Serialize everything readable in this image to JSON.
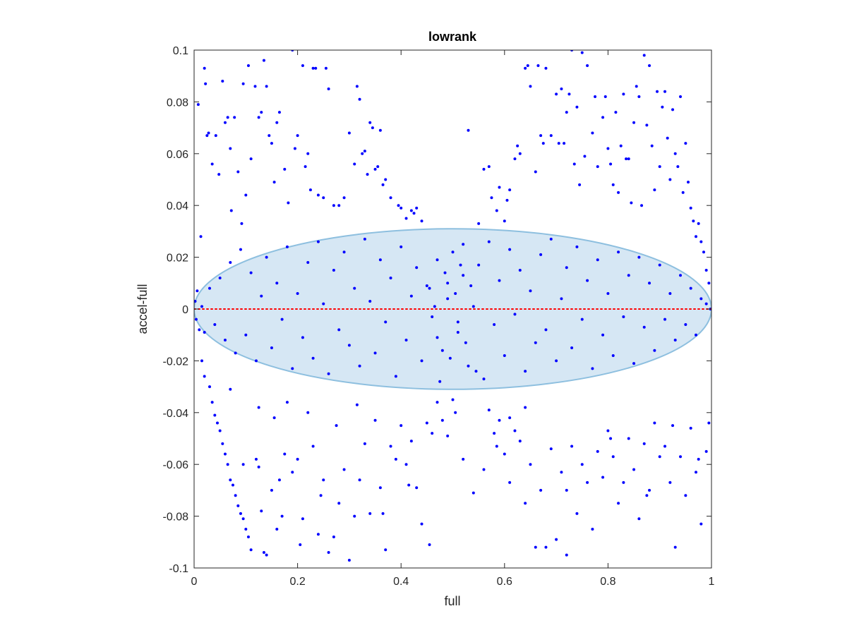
{
  "chart_data": {
    "type": "scatter",
    "title": "lowrank",
    "xlabel": "full",
    "ylabel": "accel-full",
    "xlim": [
      0,
      1
    ],
    "ylim": [
      -0.1,
      0.1
    ],
    "xticks": [
      0,
      0.2,
      0.4,
      0.6,
      0.8,
      1
    ],
    "xtick_labels": [
      "0",
      "0.2",
      "0.4",
      "0.6",
      "0.8",
      "1"
    ],
    "yticks": [
      -0.1,
      -0.08,
      -0.06,
      -0.04,
      -0.02,
      0,
      0.02,
      0.04,
      0.06,
      0.08,
      0.1
    ],
    "ytick_labels": [
      "-0.1",
      "-0.08",
      "-0.06",
      "-0.04",
      "-0.02",
      "0",
      "0.02",
      "0.04",
      "0.06",
      "0.08",
      "0.1"
    ],
    "grid": false,
    "legend": "none",
    "colors": {
      "points": "#0000ff",
      "ellipse_fill": "#d6e7f4",
      "ellipse_edge": "#8dbfdf",
      "zero_line": "#ff0000",
      "axes": "#262626"
    },
    "reference_line": {
      "y": 0,
      "x_range": [
        0,
        1
      ],
      "style": "dotted"
    },
    "ellipse": {
      "center": [
        0.5,
        0
      ],
      "semi_axis_x": 0.5,
      "semi_axis_y": 0.031
    },
    "points": [
      [
        0.008,
        0.079
      ],
      [
        0.013,
        0.028
      ],
      [
        0.02,
        0.093
      ],
      [
        0.022,
        0.087
      ],
      [
        0.025,
        0.067
      ],
      [
        0.028,
        0.068
      ],
      [
        0.035,
        0.056
      ],
      [
        0.042,
        0.067
      ],
      [
        0.048,
        0.052
      ],
      [
        0.055,
        0.088
      ],
      [
        0.06,
        0.072
      ],
      [
        0.065,
        0.074
      ],
      [
        0.07,
        0.062
      ],
      [
        0.072,
        0.038
      ],
      [
        0.078,
        0.074
      ],
      [
        0.085,
        0.053
      ],
      [
        0.092,
        0.033
      ],
      [
        0.095,
        0.087
      ],
      [
        0.1,
        0.044
      ],
      [
        0.105,
        0.094
      ],
      [
        0.11,
        0.058
      ],
      [
        0.118,
        0.086
      ],
      [
        0.125,
        0.074
      ],
      [
        0.13,
        0.076
      ],
      [
        0.135,
        0.096
      ],
      [
        0.14,
        0.086
      ],
      [
        0.145,
        0.067
      ],
      [
        0.15,
        0.064
      ],
      [
        0.155,
        0.049
      ],
      [
        0.16,
        0.072
      ],
      [
        0.165,
        0.076
      ],
      [
        0.175,
        0.054
      ],
      [
        0.182,
        0.041
      ],
      [
        0.19,
        0.1
      ],
      [
        0.195,
        0.062
      ],
      [
        0.2,
        0.067
      ],
      [
        0.21,
        0.094
      ],
      [
        0.215,
        0.055
      ],
      [
        0.22,
        0.06
      ],
      [
        0.225,
        0.046
      ],
      [
        0.23,
        0.093
      ],
      [
        0.235,
        0.093
      ],
      [
        0.24,
        0.044
      ],
      [
        0.25,
        0.043
      ],
      [
        0.255,
        0.093
      ],
      [
        0.26,
        0.085
      ],
      [
        0.27,
        0.04
      ],
      [
        0.28,
        0.04
      ],
      [
        0.29,
        0.043
      ],
      [
        0.3,
        0.068
      ],
      [
        0.31,
        0.056
      ],
      [
        0.315,
        0.086
      ],
      [
        0.32,
        0.081
      ],
      [
        0.325,
        0.06
      ],
      [
        0.33,
        0.061
      ],
      [
        0.335,
        0.052
      ],
      [
        0.34,
        0.072
      ],
      [
        0.345,
        0.07
      ],
      [
        0.35,
        0.054
      ],
      [
        0.355,
        0.055
      ],
      [
        0.36,
        0.069
      ],
      [
        0.365,
        0.048
      ],
      [
        0.37,
        0.05
      ],
      [
        0.38,
        0.043
      ],
      [
        0.395,
        0.04
      ],
      [
        0.4,
        0.039
      ],
      [
        0.41,
        0.035
      ],
      [
        0.42,
        0.038
      ],
      [
        0.425,
        0.037
      ],
      [
        0.43,
        0.039
      ],
      [
        0.44,
        0.034
      ],
      [
        0.53,
        0.069
      ],
      [
        0.55,
        0.033
      ],
      [
        0.56,
        0.054
      ],
      [
        0.57,
        0.055
      ],
      [
        0.575,
        0.043
      ],
      [
        0.585,
        0.038
      ],
      [
        0.59,
        0.047
      ],
      [
        0.6,
        0.034
      ],
      [
        0.605,
        0.042
      ],
      [
        0.61,
        0.046
      ],
      [
        0.62,
        0.058
      ],
      [
        0.625,
        0.063
      ],
      [
        0.63,
        0.06
      ],
      [
        0.64,
        0.093
      ],
      [
        0.645,
        0.094
      ],
      [
        0.65,
        0.086
      ],
      [
        0.66,
        0.053
      ],
      [
        0.665,
        0.094
      ],
      [
        0.67,
        0.067
      ],
      [
        0.675,
        0.064
      ],
      [
        0.68,
        0.093
      ],
      [
        0.69,
        0.067
      ],
      [
        0.7,
        0.083
      ],
      [
        0.705,
        0.064
      ],
      [
        0.71,
        0.085
      ],
      [
        0.715,
        0.064
      ],
      [
        0.72,
        0.076
      ],
      [
        0.725,
        0.083
      ],
      [
        0.73,
        0.1
      ],
      [
        0.735,
        0.056
      ],
      [
        0.74,
        0.078
      ],
      [
        0.745,
        0.048
      ],
      [
        0.75,
        0.099
      ],
      [
        0.755,
        0.059
      ],
      [
        0.76,
        0.094
      ],
      [
        0.77,
        0.068
      ],
      [
        0.775,
        0.082
      ],
      [
        0.78,
        0.055
      ],
      [
        0.79,
        0.074
      ],
      [
        0.795,
        0.082
      ],
      [
        0.8,
        0.062
      ],
      [
        0.805,
        0.056
      ],
      [
        0.81,
        0.048
      ],
      [
        0.815,
        0.076
      ],
      [
        0.82,
        0.045
      ],
      [
        0.825,
        0.063
      ],
      [
        0.83,
        0.083
      ],
      [
        0.835,
        0.058
      ],
      [
        0.84,
        0.058
      ],
      [
        0.845,
        0.041
      ],
      [
        0.85,
        0.072
      ],
      [
        0.855,
        0.086
      ],
      [
        0.86,
        0.082
      ],
      [
        0.865,
        0.04
      ],
      [
        0.87,
        0.098
      ],
      [
        0.875,
        0.071
      ],
      [
        0.88,
        0.094
      ],
      [
        0.885,
        0.063
      ],
      [
        0.89,
        0.046
      ],
      [
        0.895,
        0.084
      ],
      [
        0.9,
        0.055
      ],
      [
        0.905,
        0.078
      ],
      [
        0.91,
        0.084
      ],
      [
        0.915,
        0.066
      ],
      [
        0.92,
        0.05
      ],
      [
        0.925,
        0.077
      ],
      [
        0.93,
        0.06
      ],
      [
        0.935,
        0.055
      ],
      [
        0.94,
        0.082
      ],
      [
        0.945,
        0.045
      ],
      [
        0.95,
        0.064
      ],
      [
        0.955,
        0.049
      ],
      [
        0.96,
        0.039
      ],
      [
        0.965,
        0.034
      ],
      [
        0.97,
        0.028
      ],
      [
        0.975,
        0.033
      ],
      [
        0.98,
        0.026
      ],
      [
        0.985,
        0.022
      ],
      [
        0.99,
        0.015
      ],
      [
        0.995,
        0.01
      ],
      [
        0.002,
        0.003
      ],
      [
        0.004,
        -0.004
      ],
      [
        0.006,
        0.007
      ],
      [
        0.01,
        -0.008
      ],
      [
        0.015,
        0.001
      ],
      [
        0.02,
        -0.009
      ],
      [
        0.03,
        0.008
      ],
      [
        0.04,
        -0.006
      ],
      [
        0.05,
        0.012
      ],
      [
        0.06,
        -0.012
      ],
      [
        0.07,
        0.018
      ],
      [
        0.08,
        -0.017
      ],
      [
        0.09,
        0.023
      ],
      [
        0.1,
        -0.01
      ],
      [
        0.11,
        0.014
      ],
      [
        0.12,
        -0.02
      ],
      [
        0.13,
        0.005
      ],
      [
        0.14,
        0.02
      ],
      [
        0.15,
        -0.015
      ],
      [
        0.16,
        0.01
      ],
      [
        0.17,
        -0.004
      ],
      [
        0.18,
        0.024
      ],
      [
        0.19,
        -0.023
      ],
      [
        0.2,
        0.006
      ],
      [
        0.21,
        -0.011
      ],
      [
        0.22,
        0.018
      ],
      [
        0.23,
        -0.019
      ],
      [
        0.24,
        0.026
      ],
      [
        0.25,
        0.002
      ],
      [
        0.26,
        -0.025
      ],
      [
        0.27,
        0.015
      ],
      [
        0.28,
        -0.008
      ],
      [
        0.29,
        0.022
      ],
      [
        0.3,
        -0.014
      ],
      [
        0.31,
        0.008
      ],
      [
        0.32,
        -0.022
      ],
      [
        0.33,
        0.027
      ],
      [
        0.34,
        0.003
      ],
      [
        0.35,
        -0.017
      ],
      [
        0.36,
        0.019
      ],
      [
        0.37,
        -0.005
      ],
      [
        0.38,
        0.012
      ],
      [
        0.39,
        -0.026
      ],
      [
        0.4,
        0.024
      ],
      [
        0.41,
        -0.012
      ],
      [
        0.42,
        0.005
      ],
      [
        0.43,
        0.016
      ],
      [
        0.44,
        -0.02
      ],
      [
        0.45,
        0.009
      ],
      [
        0.46,
        -0.003
      ],
      [
        0.47,
        0.019
      ],
      [
        0.48,
        -0.016
      ],
      [
        0.49,
        0.004
      ],
      [
        0.5,
        0.022
      ],
      [
        0.51,
        -0.009
      ],
      [
        0.52,
        0.013
      ],
      [
        0.53,
        -0.022
      ],
      [
        0.54,
        0.001
      ],
      [
        0.55,
        0.017
      ],
      [
        0.56,
        -0.027
      ],
      [
        0.57,
        0.026
      ],
      [
        0.58,
        -0.006
      ],
      [
        0.59,
        0.011
      ],
      [
        0.6,
        -0.018
      ],
      [
        0.61,
        0.023
      ],
      [
        0.62,
        -0.002
      ],
      [
        0.63,
        0.015
      ],
      [
        0.64,
        -0.024
      ],
      [
        0.65,
        0.007
      ],
      [
        0.66,
        -0.013
      ],
      [
        0.67,
        0.021
      ],
      [
        0.68,
        -0.008
      ],
      [
        0.69,
        0.027
      ],
      [
        0.7,
        -0.02
      ],
      [
        0.71,
        0.004
      ],
      [
        0.72,
        0.016
      ],
      [
        0.73,
        -0.015
      ],
      [
        0.74,
        0.024
      ],
      [
        0.75,
        -0.004
      ],
      [
        0.76,
        0.011
      ],
      [
        0.77,
        -0.023
      ],
      [
        0.78,
        0.019
      ],
      [
        0.79,
        -0.01
      ],
      [
        0.8,
        0.006
      ],
      [
        0.81,
        -0.018
      ],
      [
        0.82,
        0.022
      ],
      [
        0.83,
        -0.003
      ],
      [
        0.84,
        0.013
      ],
      [
        0.85,
        -0.021
      ],
      [
        0.86,
        0.02
      ],
      [
        0.87,
        -0.007
      ],
      [
        0.88,
        0.01
      ],
      [
        0.89,
        -0.016
      ],
      [
        0.9,
        0.017
      ],
      [
        0.91,
        -0.004
      ],
      [
        0.92,
        0.006
      ],
      [
        0.93,
        -0.012
      ],
      [
        0.94,
        0.013
      ],
      [
        0.95,
        -0.006
      ],
      [
        0.96,
        0.008
      ],
      [
        0.97,
        -0.01
      ],
      [
        0.98,
        0.004
      ],
      [
        0.99,
        0.002
      ],
      [
        0.998,
        0
      ],
      [
        0.455,
        0.008
      ],
      [
        0.47,
        -0.011
      ],
      [
        0.485,
        0.014
      ],
      [
        0.495,
        -0.019
      ],
      [
        0.505,
        0.006
      ],
      [
        0.515,
        0.017
      ],
      [
        0.525,
        -0.013
      ],
      [
        0.535,
        0.009
      ],
      [
        0.545,
        -0.024
      ],
      [
        0.465,
        0.001
      ],
      [
        0.475,
        -0.028
      ],
      [
        0.49,
        0.01
      ],
      [
        0.51,
        -0.005
      ],
      [
        0.52,
        0.025
      ],
      [
        0.015,
        -0.02
      ],
      [
        0.02,
        -0.026
      ],
      [
        0.03,
        -0.03
      ],
      [
        0.035,
        -0.036
      ],
      [
        0.04,
        -0.041
      ],
      [
        0.045,
        -0.044
      ],
      [
        0.05,
        -0.047
      ],
      [
        0.055,
        -0.052
      ],
      [
        0.06,
        -0.056
      ],
      [
        0.065,
        -0.06
      ],
      [
        0.07,
        -0.066
      ],
      [
        0.075,
        -0.068
      ],
      [
        0.08,
        -0.072
      ],
      [
        0.085,
        -0.076
      ],
      [
        0.09,
        -0.079
      ],
      [
        0.095,
        -0.081
      ],
      [
        0.1,
        -0.085
      ],
      [
        0.105,
        -0.088
      ],
      [
        0.11,
        -0.093
      ],
      [
        0.12,
        -0.058
      ],
      [
        0.125,
        -0.061
      ],
      [
        0.13,
        -0.078
      ],
      [
        0.135,
        -0.094
      ],
      [
        0.14,
        -0.095
      ],
      [
        0.15,
        -0.07
      ],
      [
        0.155,
        -0.042
      ],
      [
        0.16,
        -0.085
      ],
      [
        0.17,
        -0.08
      ],
      [
        0.175,
        -0.056
      ],
      [
        0.18,
        -0.036
      ],
      [
        0.19,
        -0.063
      ],
      [
        0.2,
        -0.058
      ],
      [
        0.21,
        -0.081
      ],
      [
        0.22,
        -0.04
      ],
      [
        0.23,
        -0.053
      ],
      [
        0.24,
        -0.087
      ],
      [
        0.25,
        -0.066
      ],
      [
        0.26,
        -0.094
      ],
      [
        0.27,
        -0.088
      ],
      [
        0.28,
        -0.075
      ],
      [
        0.29,
        -0.062
      ],
      [
        0.3,
        -0.097
      ],
      [
        0.31,
        -0.08
      ],
      [
        0.32,
        -0.066
      ],
      [
        0.33,
        -0.052
      ],
      [
        0.34,
        -0.079
      ],
      [
        0.35,
        -0.043
      ],
      [
        0.36,
        -0.069
      ],
      [
        0.37,
        -0.093
      ],
      [
        0.38,
        -0.053
      ],
      [
        0.39,
        -0.058
      ],
      [
        0.4,
        -0.045
      ],
      [
        0.41,
        -0.06
      ],
      [
        0.42,
        -0.051
      ],
      [
        0.43,
        -0.069
      ],
      [
        0.44,
        -0.083
      ],
      [
        0.45,
        -0.044
      ],
      [
        0.46,
        -0.048
      ],
      [
        0.47,
        -0.036
      ],
      [
        0.48,
        -0.043
      ],
      [
        0.49,
        -0.049
      ],
      [
        0.5,
        -0.035
      ],
      [
        0.56,
        -0.062
      ],
      [
        0.57,
        -0.039
      ],
      [
        0.58,
        -0.048
      ],
      [
        0.59,
        -0.043
      ],
      [
        0.6,
        -0.056
      ],
      [
        0.61,
        -0.067
      ],
      [
        0.62,
        -0.047
      ],
      [
        0.63,
        -0.051
      ],
      [
        0.64,
        -0.038
      ],
      [
        0.65,
        -0.06
      ],
      [
        0.66,
        -0.092
      ],
      [
        0.67,
        -0.07
      ],
      [
        0.68,
        -0.092
      ],
      [
        0.69,
        -0.054
      ],
      [
        0.7,
        -0.089
      ],
      [
        0.71,
        -0.063
      ],
      [
        0.72,
        -0.07
      ],
      [
        0.73,
        -0.053
      ],
      [
        0.74,
        -0.079
      ],
      [
        0.75,
        -0.06
      ],
      [
        0.76,
        -0.067
      ],
      [
        0.77,
        -0.085
      ],
      [
        0.78,
        -0.055
      ],
      [
        0.79,
        -0.065
      ],
      [
        0.8,
        -0.047
      ],
      [
        0.81,
        -0.057
      ],
      [
        0.82,
        -0.075
      ],
      [
        0.83,
        -0.067
      ],
      [
        0.84,
        -0.05
      ],
      [
        0.85,
        -0.062
      ],
      [
        0.86,
        -0.081
      ],
      [
        0.87,
        -0.052
      ],
      [
        0.88,
        -0.07
      ],
      [
        0.89,
        -0.044
      ],
      [
        0.9,
        -0.057
      ],
      [
        0.91,
        -0.053
      ],
      [
        0.92,
        -0.067
      ],
      [
        0.93,
        -0.092
      ],
      [
        0.94,
        -0.057
      ],
      [
        0.95,
        -0.072
      ],
      [
        0.96,
        -0.046
      ],
      [
        0.97,
        -0.063
      ],
      [
        0.98,
        -0.083
      ],
      [
        0.99,
        -0.055
      ],
      [
        0.995,
        -0.044
      ],
      [
        0.975,
        -0.058
      ],
      [
        0.925,
        -0.045
      ],
      [
        0.875,
        -0.072
      ],
      [
        0.805,
        -0.05
      ],
      [
        0.72,
        -0.095
      ],
      [
        0.64,
        -0.075
      ],
      [
        0.61,
        -0.042
      ],
      [
        0.585,
        -0.053
      ],
      [
        0.54,
        -0.071
      ],
      [
        0.52,
        -0.058
      ],
      [
        0.505,
        -0.04
      ],
      [
        0.455,
        -0.091
      ],
      [
        0.415,
        -0.068
      ],
      [
        0.365,
        -0.079
      ],
      [
        0.315,
        -0.037
      ],
      [
        0.275,
        -0.045
      ],
      [
        0.245,
        -0.072
      ],
      [
        0.205,
        -0.091
      ],
      [
        0.165,
        -0.066
      ],
      [
        0.125,
        -0.038
      ],
      [
        0.095,
        -0.06
      ],
      [
        0.07,
        -0.031
      ]
    ]
  }
}
